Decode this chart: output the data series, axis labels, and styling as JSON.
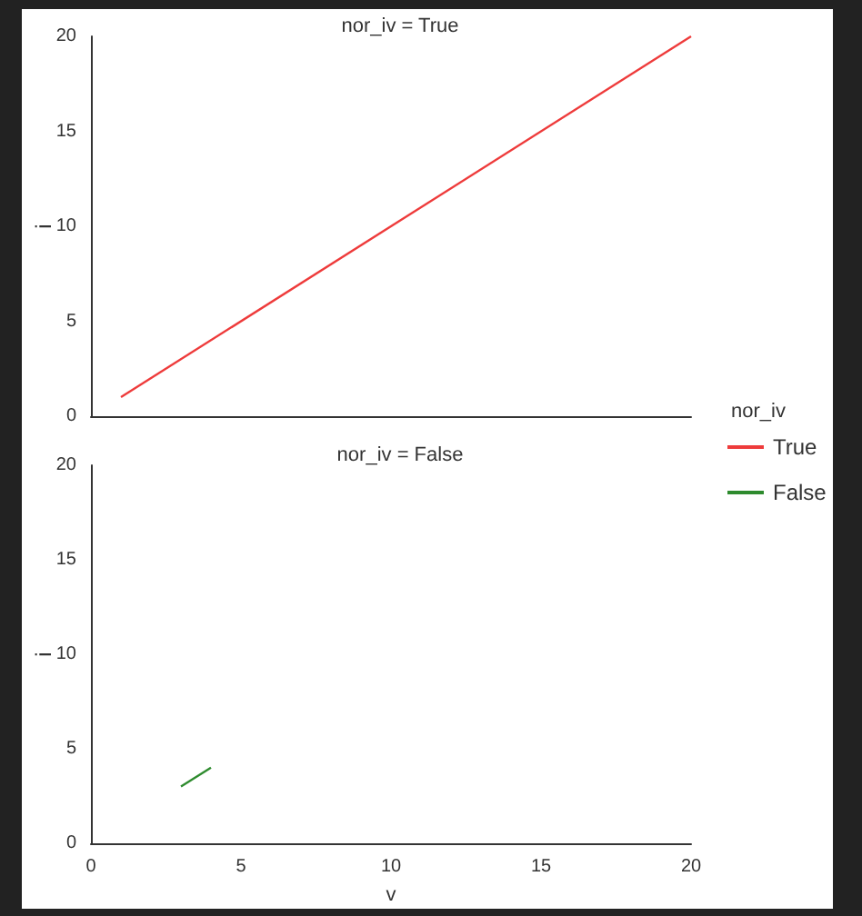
{
  "chart_data": [
    {
      "type": "line",
      "title": "nor_iv = True",
      "ylabel": "i",
      "legend_title": "nor_iv",
      "legend": "bottom right",
      "tick_labels": "y",
      "x": [
        1,
        20
      ],
      "xlim": [
        0,
        20
      ],
      "xticks": [
        0,
        5,
        10,
        15,
        20
      ],
      "ylim": [
        0,
        20
      ],
      "yticks": [
        0,
        5,
        10,
        15,
        20
      ],
      "series": [
        {
          "name": "True",
          "color": "#ee3b3b",
          "values": [
            1,
            20
          ]
        }
      ]
    },
    {
      "type": "line",
      "title": "nor_iv = False",
      "xlabel": "v",
      "ylabel": "i",
      "legend": "top right",
      "x": [
        3,
        4
      ],
      "xlim": [
        0,
        20
      ],
      "xticks": [
        0,
        5,
        10,
        15,
        20
      ],
      "ylim": [
        0,
        20
      ],
      "yticks": [
        0,
        5,
        10,
        15,
        20
      ],
      "series": [
        {
          "name": "False",
          "color": "#2e8b2e",
          "values": [
            3,
            4
          ]
        }
      ]
    }
  ]
}
